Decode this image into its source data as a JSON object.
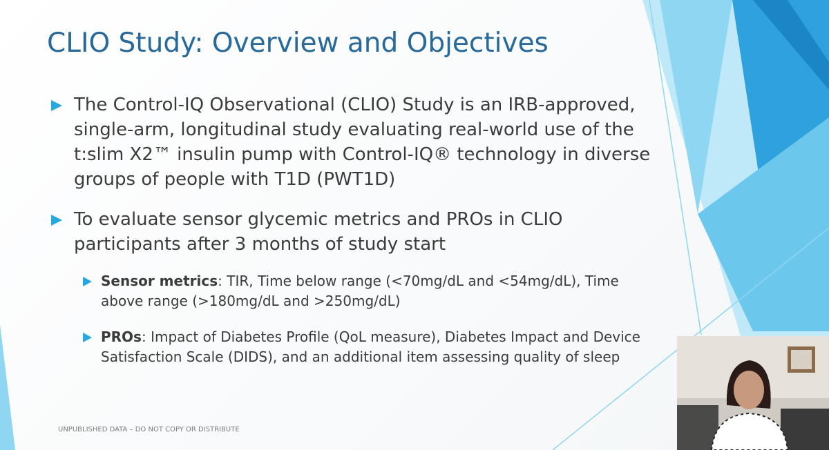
{
  "slide": {
    "title": "CLIO Study: Overview and Objectives",
    "bullets": [
      {
        "text": "The Control-IQ Observational (CLIO) Study is an IRB-approved, single-arm, longitudinal study evaluating real-world use of the t:slim X2™ insulin pump with Control-IQ® technology in diverse groups of people with T1D (PWT1D)"
      },
      {
        "text": "To evaluate sensor glycemic metrics and PROs in CLIO participants after 3 months of study start",
        "sub_bullets": [
          {
            "label": "Sensor metrics",
            "text": ": TIR, Time below range (<70mg/dL and <54mg/dL), Time above range (>180mg/dL and >250mg/dL)"
          },
          {
            "label": "PROs",
            "text": ": Impact of Diabetes Profile (QoL measure), Diabetes Impact and Device Satisfaction Scale (DIDS), and an additional item assessing quality of sleep"
          }
        ]
      }
    ],
    "footer": "UNPUBLISHED DATA – DO NOT COPY OR DISTRIBUTE"
  }
}
